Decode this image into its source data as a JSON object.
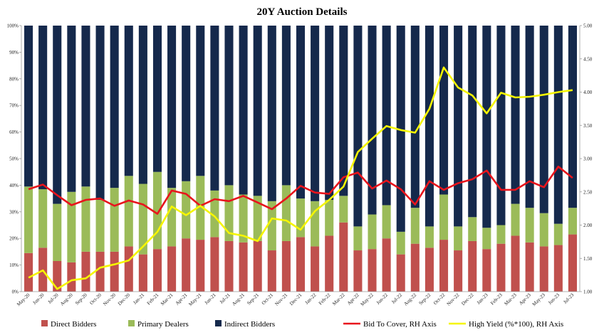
{
  "chart_data": {
    "type": "bar",
    "title": "20Y Auction Details",
    "categories": [
      "May-20",
      "Jun-20",
      "Jul-20",
      "Aug-20",
      "Sep-20",
      "Oct-20",
      "Nov-20",
      "Dec-20",
      "Jan-21",
      "Feb-21",
      "Mar-21",
      "Apr-21",
      "May-21",
      "Jun-21",
      "Jul-21",
      "Aug-21",
      "Sep-21",
      "Oct-21",
      "Nov-21",
      "Dec-21",
      "Jan-22",
      "Feb-22",
      "Mar-22",
      "Apr-22",
      "May-22",
      "Jun-22",
      "Jul-22",
      "Aug-22",
      "Sep-22",
      "Oct-22",
      "Nov-22",
      "Dec-22",
      "Jan-23",
      "Feb-23",
      "Mar-23",
      "Apr-23",
      "May-23",
      "Jun-23",
      "Jul-23"
    ],
    "stacked": true,
    "series": [
      {
        "name": "Direct Bidders",
        "axis": "left",
        "color": "#c0504d",
        "values": [
          14.5,
          16.5,
          11.5,
          11,
          15,
          15,
          15,
          17,
          14,
          16,
          17,
          20,
          19.5,
          20.5,
          19,
          18.5,
          19,
          15.5,
          19,
          20.5,
          17,
          21,
          26,
          15.5,
          16,
          20,
          14,
          18,
          16.5,
          19.5,
          15.5,
          19,
          16,
          18,
          21,
          18.5,
          17,
          17.5,
          21.5
        ]
      },
      {
        "name": "Primary Dealers",
        "axis": "left",
        "color": "#9bbb59",
        "values": [
          25,
          22,
          21.5,
          26.5,
          24.5,
          19.5,
          24,
          26.5,
          26.5,
          29,
          22,
          21.5,
          24,
          17.5,
          21,
          18,
          17,
          18.5,
          21,
          14.5,
          17,
          13.5,
          10,
          9,
          13,
          12.5,
          8.5,
          13.5,
          8,
          17,
          9,
          9,
          8,
          7,
          12,
          13,
          12.5,
          8,
          10
        ]
      },
      {
        "name": "Indirect Bidders",
        "axis": "left",
        "color": "#15294c",
        "values": [
          60.5,
          61.5,
          67,
          62.5,
          60.5,
          65.5,
          61,
          56.5,
          59.5,
          55,
          61,
          58.5,
          56.5,
          62,
          60,
          63.5,
          64,
          66,
          60,
          65,
          66,
          65.5,
          64,
          75.5,
          71,
          67.5,
          77.5,
          68.5,
          75.5,
          63.5,
          75.5,
          72,
          76,
          75,
          67,
          68.5,
          70.5,
          74.5,
          68.5
        ]
      },
      {
        "name": "Bid To Cover, RH Axis",
        "axis": "right",
        "type": "line",
        "color": "#e8141c",
        "values": [
          2.54,
          2.61,
          2.45,
          2.3,
          2.38,
          2.4,
          2.29,
          2.37,
          2.31,
          2.17,
          2.52,
          2.47,
          2.29,
          2.39,
          2.36,
          2.44,
          2.34,
          2.24,
          2.4,
          2.59,
          2.49,
          2.47,
          2.72,
          2.79,
          2.55,
          2.67,
          2.54,
          2.31,
          2.66,
          2.53,
          2.63,
          2.69,
          2.82,
          2.53,
          2.53,
          2.66,
          2.57,
          2.88,
          2.71
        ]
      },
      {
        "name": "High Yield (%*100), RH Axis",
        "axis": "right",
        "type": "line",
        "color": "#f5f500",
        "values": [
          1.21,
          1.32,
          1.04,
          1.17,
          1.2,
          1.36,
          1.41,
          1.47,
          1.68,
          1.9,
          2.28,
          2.15,
          2.29,
          2.13,
          1.88,
          1.84,
          1.76,
          2.1,
          2.07,
          1.93,
          2.21,
          2.38,
          2.58,
          3.1,
          3.3,
          3.49,
          3.43,
          3.39,
          3.75,
          4.37,
          4.07,
          3.95,
          3.68,
          3.99,
          3.92,
          3.93,
          3.96,
          4.0,
          4.03
        ]
      }
    ],
    "y_left": {
      "ticks": [
        "0%",
        "10%",
        "20%",
        "30%",
        "40%",
        "50%",
        "60%",
        "70%",
        "80%",
        "90%",
        "100%"
      ],
      "ylim": [
        0,
        100
      ]
    },
    "y_right": {
      "ticks": [
        "1.00",
        "1.50",
        "2.00",
        "2.50",
        "3.00",
        "3.50",
        "4.00",
        "4.50",
        "5.00"
      ],
      "ylim": [
        1.0,
        5.0
      ]
    },
    "legend_position": "bottom",
    "grid": false
  }
}
